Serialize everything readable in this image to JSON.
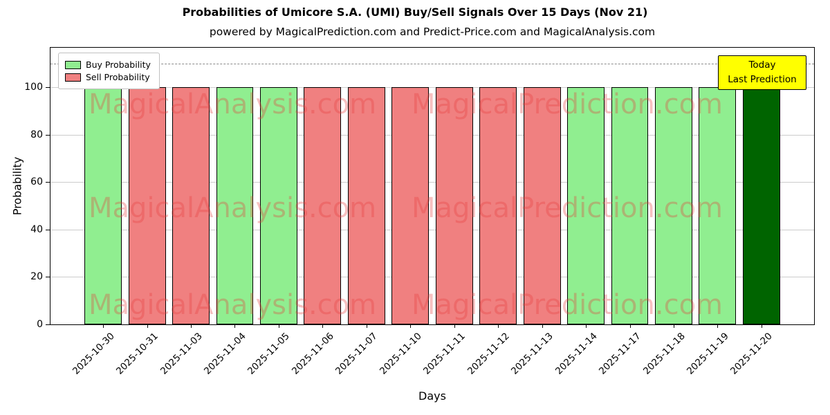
{
  "chart_data": {
    "type": "bar",
    "title": "Probabilities of Umicore S.A. (UMI) Buy/Sell Signals Over 15 Days (Nov 21)",
    "subtitle": "powered by MagicalPrediction.com and Predict-Price.com and MagicalAnalysis.com",
    "xlabel": "Days",
    "ylabel": "Probability",
    "ylim": [
      0,
      116.6
    ],
    "yticks": [
      0,
      20,
      40,
      60,
      80,
      100
    ],
    "grid": true,
    "dashed_line_y": 110,
    "categories": [
      "2025-10-30",
      "2025-10-31",
      "2025-11-03",
      "2025-11-04",
      "2025-11-05",
      "2025-11-06",
      "2025-11-07",
      "2025-11-10",
      "2025-11-11",
      "2025-11-12",
      "2025-11-13",
      "2025-11-14",
      "2025-11-17",
      "2025-11-18",
      "2025-11-19",
      "2025-11-20"
    ],
    "values": [
      100,
      100,
      100,
      100,
      100,
      100,
      100,
      100,
      100,
      100,
      100,
      100,
      100,
      100,
      100,
      100
    ],
    "signals": [
      "buy",
      "sell",
      "sell",
      "buy",
      "buy",
      "sell",
      "sell",
      "sell",
      "sell",
      "sell",
      "sell",
      "buy",
      "buy",
      "buy",
      "buy",
      "today"
    ],
    "colors": {
      "buy": "#90EE90",
      "sell": "#F08080",
      "today": "#006400",
      "bar_edge": "#000000",
      "watermark": "rgba(230,60,60,0.32)",
      "annotation_bg": "#FFFF00"
    },
    "legend": {
      "position": "upper-left",
      "entries": [
        {
          "label": "Buy Probability",
          "color": "#90EE90"
        },
        {
          "label": "Sell Probability",
          "color": "#F08080"
        }
      ]
    },
    "annotation": {
      "lines": [
        "Today",
        "Last Prediction"
      ]
    },
    "watermarks": [
      "MagicalAnalysis.com",
      "MagicalPrediction.com"
    ]
  }
}
